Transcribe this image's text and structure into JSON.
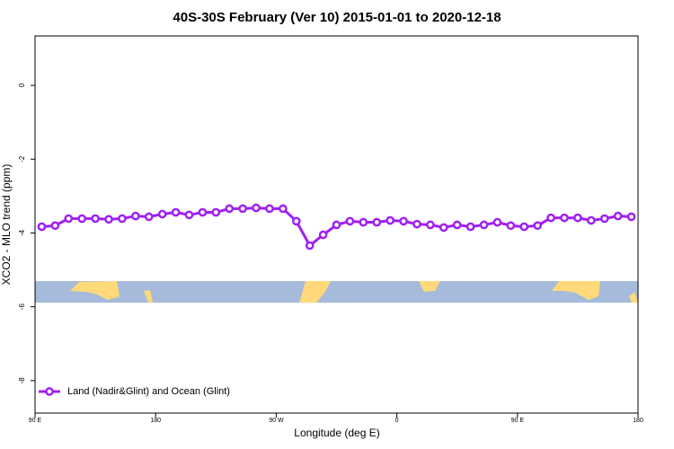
{
  "chart_data": {
    "type": "line",
    "title": "40S-30S February (Ver 10)   2015-01-01 to 2020-12-18",
    "x_label": "Longitude (deg E)",
    "y_label": "XCO2 - MLO trend (ppm)",
    "x": [
      95,
      105,
      115,
      125,
      135,
      145,
      155,
      165,
      175,
      185,
      195,
      205,
      215,
      225,
      235,
      245,
      255,
      265,
      275,
      285,
      295,
      305,
      315,
      325,
      335,
      345,
      355,
      365,
      375,
      385,
      395,
      405,
      415,
      425,
      435,
      445,
      455,
      465,
      475,
      485,
      495,
      505,
      515,
      525,
      535
    ],
    "series": [
      {
        "name": "Land (Nadir&Glint) and Ocean (Glint)",
        "color": "#a020f0",
        "values": [
          -3.83,
          -3.8,
          -3.61,
          -3.61,
          -3.61,
          -3.63,
          -3.61,
          -3.54,
          -3.56,
          -3.49,
          -3.44,
          -3.51,
          -3.44,
          -3.44,
          -3.34,
          -3.34,
          -3.32,
          -3.34,
          -3.34,
          -3.68,
          -4.34,
          -4.05,
          -3.78,
          -3.68,
          -3.71,
          -3.71,
          -3.66,
          -3.68,
          -3.76,
          -3.78,
          -3.85,
          -3.78,
          -3.83,
          -3.78,
          -3.71,
          -3.8,
          -3.83,
          -3.8,
          -3.59,
          -3.59,
          -3.59,
          -3.66,
          -3.61,
          -3.54,
          -3.56
        ]
      }
    ],
    "xlim": [
      90,
      540
    ],
    "xticks": [
      {
        "value": 90,
        "label": "90 E"
      },
      {
        "value": 180,
        "label": "180"
      },
      {
        "value": 270,
        "label": "90 W"
      },
      {
        "value": 360,
        "label": "0"
      },
      {
        "value": 450,
        "label": "90 E"
      },
      {
        "value": 540,
        "label": "180"
      }
    ],
    "ylim": [
      -8.88,
      1.34
    ],
    "yticks": [
      0,
      -2,
      -4,
      -6,
      -8
    ],
    "legend": "bottom-left"
  }
}
